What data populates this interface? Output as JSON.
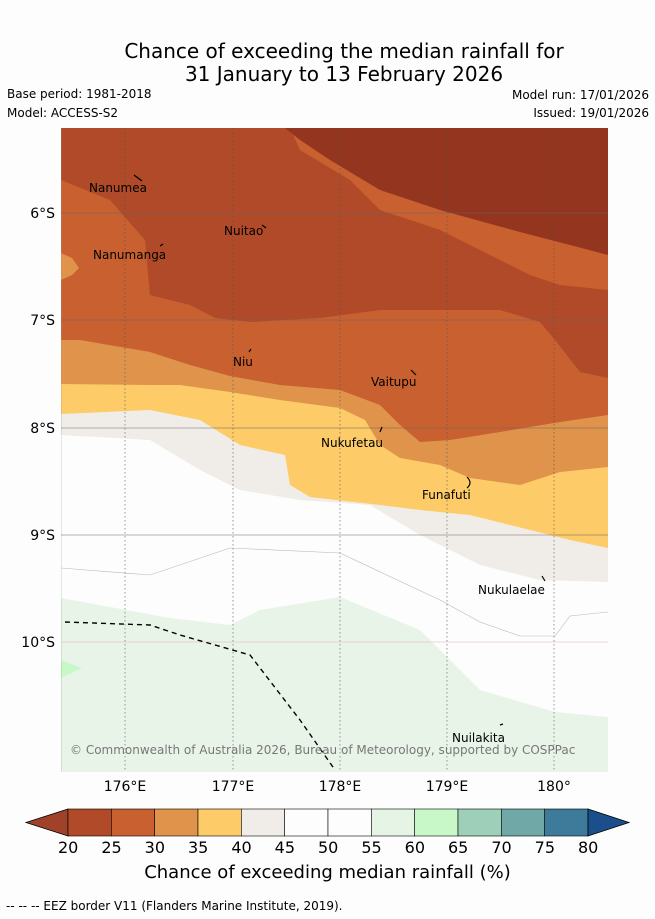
{
  "header": {
    "title_line1": "Chance of exceeding the median rainfall for",
    "title_line2": "31 January to 13 February 2026",
    "base_period": "Base period: 1981-2018",
    "model": "Model: ACCESS-S2",
    "model_run": "Model run: 17/01/2026",
    "issued": "Issued: 19/01/2026"
  },
  "map": {
    "lat_labels": [
      "6°S",
      "7°S",
      "8°S",
      "9°S",
      "10°S"
    ],
    "lon_labels": [
      "176°E",
      "177°E",
      "178°E",
      "179°E",
      "180°"
    ],
    "islands": [
      "Nanumea",
      "Nuitao",
      "Nanumanga",
      "Niu",
      "Vaitupu",
      "Nukufetau",
      "Funafuti",
      "Nukulaelae",
      "Nuilakita"
    ],
    "copyright": "© Commonwealth of Australia 2026, Bureau of Meteorology, supported by COSPPac"
  },
  "colorbar": {
    "ticks": [
      "20",
      "25",
      "30",
      "35",
      "40",
      "45",
      "50",
      "55",
      "60",
      "65",
      "70",
      "75",
      "80"
    ],
    "colors": [
      "#a0422a",
      "#b04a28",
      "#c96030",
      "#e0934a",
      "#fdcb67",
      "#f0ede8",
      "#fcfdfc",
      "#fcfdfc",
      "#e6f4e6",
      "#c8f8c8",
      "#9ecfb8",
      "#70a8a8",
      "#3e7b9a",
      "#1b4f8c"
    ],
    "title": "Chance of exceeding median rainfall (%)"
  },
  "footer": {
    "legend": "-- -- -- EEZ border V11 (Flanders Marine Institute, 2019)."
  }
}
